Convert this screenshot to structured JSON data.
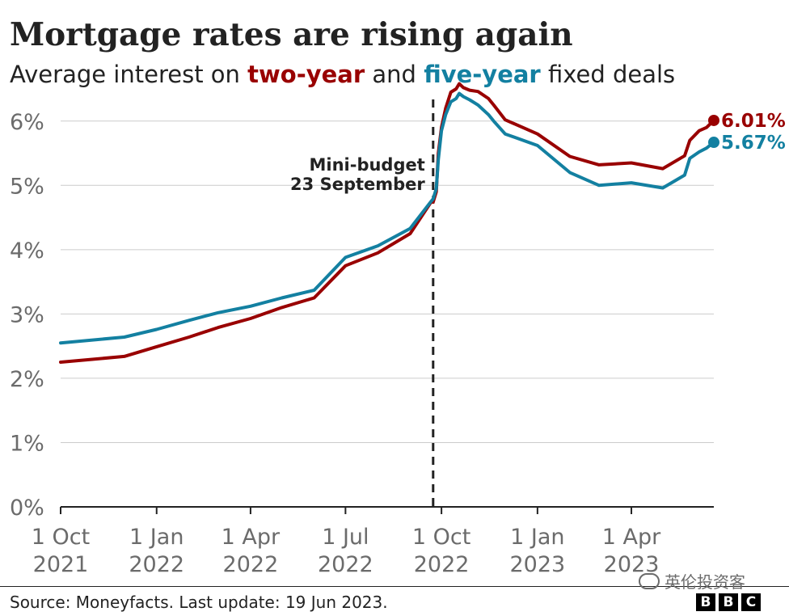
{
  "header": {
    "title": "Mortgage rates are rising again",
    "subtitle_prefix": "Average interest on ",
    "subtitle_two": "two-year",
    "subtitle_mid": " and ",
    "subtitle_five": "five-year",
    "subtitle_suffix": " fixed deals"
  },
  "footer": {
    "source": "Source: Moneyfacts. Last update: 19 Jun 2023.",
    "watermark": "英伦投资客",
    "logo_letters": [
      "B",
      "B",
      "C"
    ]
  },
  "colors": {
    "two_year": "#990000",
    "five_year": "#1380a1",
    "grid": "#cccccc",
    "axis": "#222222",
    "tick_text": "#6b6b6b"
  },
  "chart_data": {
    "type": "line",
    "title": "Mortgage rates are rising again",
    "subtitle": "Average interest on two-year and five-year fixed deals",
    "xlabel": "",
    "ylabel": "",
    "xlim": [
      "2021-10-01",
      "2023-06-19"
    ],
    "ylim": [
      0,
      6.5
    ],
    "yticks": [
      0,
      1,
      2,
      3,
      4,
      5,
      6
    ],
    "ytick_labels": [
      "0%",
      "1%",
      "2%",
      "3%",
      "4%",
      "5%",
      "6%"
    ],
    "xticks": [
      {
        "date": "2021-10-01",
        "label": [
          "1 Oct",
          "2021"
        ]
      },
      {
        "date": "2022-01-01",
        "label": [
          "1 Jan",
          "2022"
        ]
      },
      {
        "date": "2022-04-01",
        "label": [
          "1 Apr",
          "2022"
        ]
      },
      {
        "date": "2022-07-01",
        "label": [
          "1 Jul",
          "2022"
        ]
      },
      {
        "date": "2022-10-01",
        "label": [
          "1 Oct",
          "2022"
        ]
      },
      {
        "date": "2023-01-01",
        "label": [
          "1 Jan",
          "2023"
        ]
      },
      {
        "date": "2023-04-01",
        "label": [
          "1 Apr",
          "2023"
        ]
      }
    ],
    "grid": true,
    "legend": "none",
    "annotation": {
      "date": "2022-09-23",
      "text": [
        "Mini-budget",
        "23 September"
      ]
    },
    "series": [
      {
        "name": "two-year",
        "end_label": "6.01%",
        "points": [
          [
            "2021-10-01",
            2.25
          ],
          [
            "2021-12-01",
            2.34
          ],
          [
            "2022-01-01",
            2.49
          ],
          [
            "2022-02-01",
            2.64
          ],
          [
            "2022-03-01",
            2.79
          ],
          [
            "2022-04-01",
            2.93
          ],
          [
            "2022-05-01",
            3.1
          ],
          [
            "2022-06-01",
            3.25
          ],
          [
            "2022-07-01",
            3.75
          ],
          [
            "2022-08-01",
            3.95
          ],
          [
            "2022-09-01",
            4.25
          ],
          [
            "2022-09-21",
            4.74
          ],
          [
            "2022-09-23",
            4.74
          ],
          [
            "2022-09-26",
            4.9
          ],
          [
            "2022-09-28",
            5.5
          ],
          [
            "2022-10-01",
            5.9
          ],
          [
            "2022-10-05",
            6.2
          ],
          [
            "2022-10-10",
            6.45
          ],
          [
            "2022-10-15",
            6.5
          ],
          [
            "2022-10-18",
            6.58
          ],
          [
            "2022-10-22",
            6.52
          ],
          [
            "2022-10-28",
            6.48
          ],
          [
            "2022-11-05",
            6.46
          ],
          [
            "2022-11-15",
            6.35
          ],
          [
            "2022-11-20",
            6.25
          ],
          [
            "2022-12-01",
            6.02
          ],
          [
            "2023-01-01",
            5.8
          ],
          [
            "2023-02-01",
            5.45
          ],
          [
            "2023-03-01",
            5.32
          ],
          [
            "2023-04-01",
            5.35
          ],
          [
            "2023-05-01",
            5.26
          ],
          [
            "2023-05-22",
            5.46
          ],
          [
            "2023-05-27",
            5.7
          ],
          [
            "2023-06-05",
            5.85
          ],
          [
            "2023-06-12",
            5.9
          ],
          [
            "2023-06-19",
            6.01
          ]
        ]
      },
      {
        "name": "five-year",
        "end_label": "5.67%",
        "points": [
          [
            "2021-10-01",
            2.55
          ],
          [
            "2021-12-01",
            2.64
          ],
          [
            "2022-01-01",
            2.76
          ],
          [
            "2022-02-01",
            2.9
          ],
          [
            "2022-03-01",
            3.02
          ],
          [
            "2022-04-01",
            3.12
          ],
          [
            "2022-05-01",
            3.25
          ],
          [
            "2022-06-01",
            3.37
          ],
          [
            "2022-07-01",
            3.88
          ],
          [
            "2022-08-01",
            4.06
          ],
          [
            "2022-09-01",
            4.33
          ],
          [
            "2022-09-21",
            4.75
          ],
          [
            "2022-09-23",
            4.79
          ],
          [
            "2022-09-26",
            4.95
          ],
          [
            "2022-09-28",
            5.4
          ],
          [
            "2022-10-01",
            5.85
          ],
          [
            "2022-10-05",
            6.1
          ],
          [
            "2022-10-10",
            6.3
          ],
          [
            "2022-10-15",
            6.35
          ],
          [
            "2022-10-18",
            6.43
          ],
          [
            "2022-10-22",
            6.38
          ],
          [
            "2022-10-28",
            6.33
          ],
          [
            "2022-11-05",
            6.25
          ],
          [
            "2022-11-15",
            6.1
          ],
          [
            "2022-11-20",
            6.0
          ],
          [
            "2022-12-01",
            5.8
          ],
          [
            "2023-01-01",
            5.62
          ],
          [
            "2023-02-01",
            5.2
          ],
          [
            "2023-03-01",
            5.0
          ],
          [
            "2023-04-01",
            5.04
          ],
          [
            "2023-05-01",
            4.96
          ],
          [
            "2023-05-22",
            5.16
          ],
          [
            "2023-05-27",
            5.42
          ],
          [
            "2023-06-05",
            5.52
          ],
          [
            "2023-06-12",
            5.58
          ],
          [
            "2023-06-19",
            5.67
          ]
        ]
      }
    ]
  }
}
